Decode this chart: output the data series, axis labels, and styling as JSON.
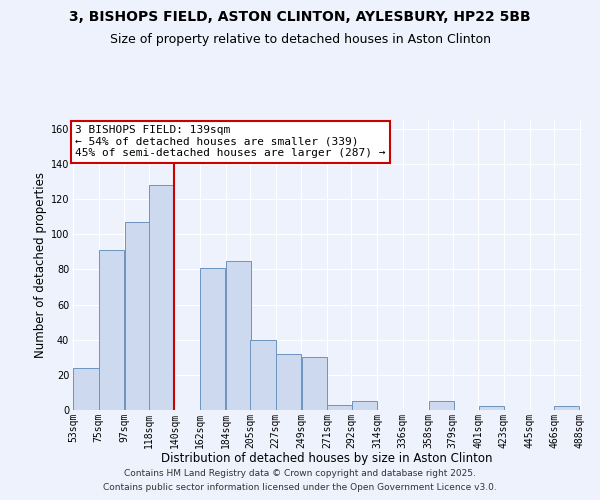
{
  "title": "3, BISHOPS FIELD, ASTON CLINTON, AYLESBURY, HP22 5BB",
  "subtitle": "Size of property relative to detached houses in Aston Clinton",
  "xlabel": "Distribution of detached houses by size in Aston Clinton",
  "ylabel": "Number of detached properties",
  "bar_left_edges": [
    53,
    75,
    97,
    118,
    140,
    162,
    184,
    205,
    227,
    249,
    271,
    292,
    314,
    336,
    358,
    379,
    401,
    423,
    445,
    466
  ],
  "bar_heights": [
    24,
    91,
    107,
    128,
    0,
    81,
    85,
    40,
    32,
    30,
    3,
    5,
    0,
    0,
    5,
    0,
    2,
    0,
    0,
    2
  ],
  "bin_width": 22,
  "tick_labels": [
    "53sqm",
    "75sqm",
    "97sqm",
    "118sqm",
    "140sqm",
    "162sqm",
    "184sqm",
    "205sqm",
    "227sqm",
    "249sqm",
    "271sqm",
    "292sqm",
    "314sqm",
    "336sqm",
    "358sqm",
    "379sqm",
    "401sqm",
    "423sqm",
    "445sqm",
    "466sqm",
    "488sqm"
  ],
  "bar_color": "#ccd9ee",
  "bar_edge_color": "#6b94c0",
  "vline_x": 140,
  "vline_color": "#cc0000",
  "annotation_text": "3 BISHOPS FIELD: 139sqm\n← 54% of detached houses are smaller (339)\n45% of semi-detached houses are larger (287) →",
  "annotation_box_color": "#cc0000",
  "ylim": [
    0,
    165
  ],
  "yticks": [
    0,
    20,
    40,
    60,
    80,
    100,
    120,
    140,
    160
  ],
  "background_color": "#eef2fc",
  "grid_color": "#ffffff",
  "footer_line1": "Contains HM Land Registry data © Crown copyright and database right 2025.",
  "footer_line2": "Contains public sector information licensed under the Open Government Licence v3.0.",
  "title_fontsize": 10,
  "subtitle_fontsize": 9,
  "axis_label_fontsize": 8.5,
  "tick_fontsize": 7,
  "annotation_fontsize": 8,
  "footer_fontsize": 6.5
}
